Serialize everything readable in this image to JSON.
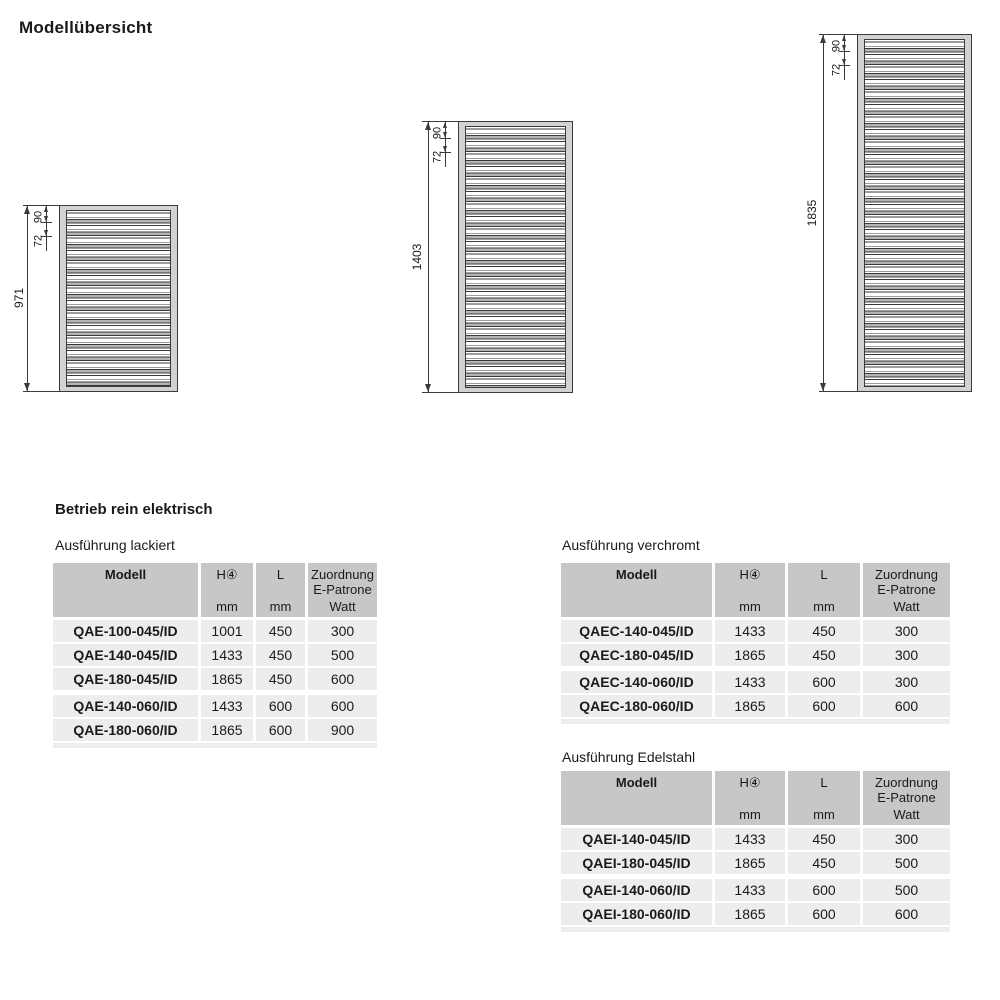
{
  "page": {
    "title": "Modellübersicht"
  },
  "section_heading": "Betrieb rein elektrisch",
  "colors": {
    "table_header_bg": "#c6c7c7",
    "table_row_bg": "#ededed",
    "radiator_frame": "#d2d2d2",
    "radiator_tube": "#b4b4b4",
    "line": "#3a3a3a"
  },
  "diagrams": [
    {
      "id": "radiator-971",
      "height_label": "971",
      "top_dim": "90",
      "second_dim": "72"
    },
    {
      "id": "radiator-1403",
      "height_label": "1403",
      "top_dim": "90",
      "second_dim": "72"
    },
    {
      "id": "radiator-1835",
      "height_label": "1835",
      "top_dim": "90",
      "second_dim": "72"
    }
  ],
  "tables": [
    {
      "title": "Ausführung lackiert",
      "header": {
        "model": "Modell",
        "height": "H④",
        "length": "L",
        "assignment_line1": "Zuordnung",
        "assignment_line2": "E-Patrone",
        "unit_mm": "mm",
        "unit_watt": "Watt"
      },
      "groups": [
        {
          "rows": [
            {
              "model": "QAE-100-045/ID",
              "h": "1001",
              "l": "450",
              "watt": "300"
            },
            {
              "model": "QAE-140-045/ID",
              "h": "1433",
              "l": "450",
              "watt": "500"
            },
            {
              "model": "QAE-180-045/ID",
              "h": "1865",
              "l": "450",
              "watt": "600"
            }
          ]
        },
        {
          "rows": [
            {
              "model": "QAE-140-060/ID",
              "h": "1433",
              "l": "600",
              "watt": "600"
            },
            {
              "model": "QAE-180-060/ID",
              "h": "1865",
              "l": "600",
              "watt": "900"
            }
          ]
        }
      ]
    },
    {
      "title": "Ausführung verchromt",
      "header": {
        "model": "Modell",
        "height": "H④",
        "length": "L",
        "assignment_line1": "Zuordnung",
        "assignment_line2": "E-Patrone",
        "unit_mm": "mm",
        "unit_watt": "Watt"
      },
      "groups": [
        {
          "rows": [
            {
              "model": "QAEC-140-045/ID",
              "h": "1433",
              "l": "450",
              "watt": "300"
            },
            {
              "model": "QAEC-180-045/ID",
              "h": "1865",
              "l": "450",
              "watt": "300"
            }
          ]
        },
        {
          "rows": [
            {
              "model": "QAEC-140-060/ID",
              "h": "1433",
              "l": "600",
              "watt": "300"
            },
            {
              "model": "QAEC-180-060/ID",
              "h": "1865",
              "l": "600",
              "watt": "600"
            }
          ]
        }
      ]
    },
    {
      "title": "Ausführung Edelstahl",
      "header": {
        "model": "Modell",
        "height": "H④",
        "length": "L",
        "assignment_line1": "Zuordnung",
        "assignment_line2": "E-Patrone",
        "unit_mm": "mm",
        "unit_watt": "Watt"
      },
      "groups": [
        {
          "rows": [
            {
              "model": "QAEI-140-045/ID",
              "h": "1433",
              "l": "450",
              "watt": "300"
            },
            {
              "model": "QAEI-180-045/ID",
              "h": "1865",
              "l": "450",
              "watt": "500"
            }
          ]
        },
        {
          "rows": [
            {
              "model": "QAEI-140-060/ID",
              "h": "1433",
              "l": "600",
              "watt": "500"
            },
            {
              "model": "QAEI-180-060/ID",
              "h": "1865",
              "l": "600",
              "watt": "600"
            }
          ]
        }
      ]
    }
  ]
}
